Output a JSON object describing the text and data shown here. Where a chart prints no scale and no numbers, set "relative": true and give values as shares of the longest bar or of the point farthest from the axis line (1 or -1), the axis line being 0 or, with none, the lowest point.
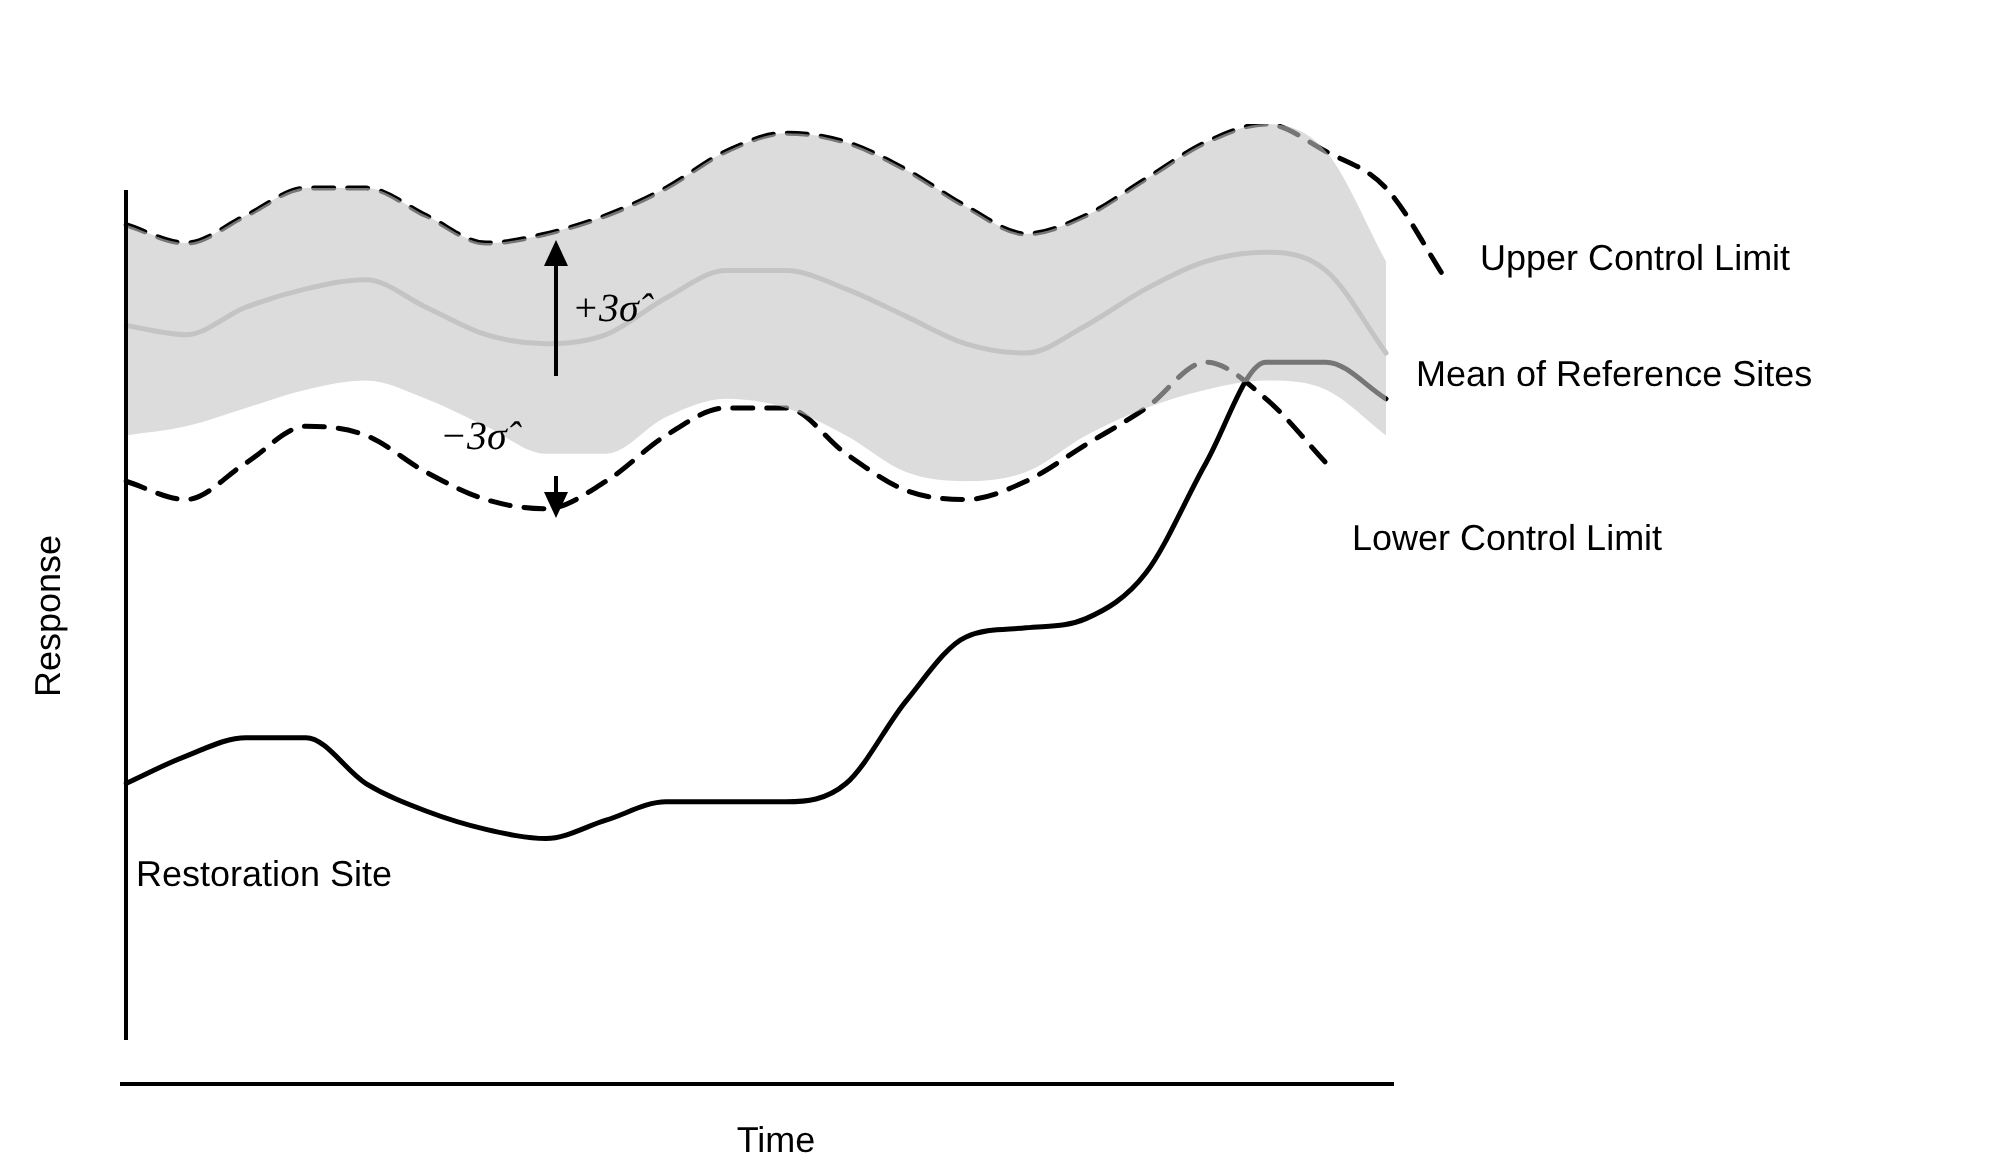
{
  "chart_data": {
    "type": "line",
    "relative": true,
    "xlabel": "Time",
    "ylabel": "Response",
    "legend": false,
    "marker": "none",
    "categories": [
      null,
      null,
      null,
      null,
      null,
      null,
      null,
      null,
      null,
      null,
      null,
      null,
      null,
      null,
      null,
      null,
      null,
      null,
      null,
      null,
      null,
      null,
      null
    ],
    "series": [
      {
        "name": "Mean of Reference Sites",
        "color": "#c4c4c4",
        "values": [
          0.78,
          0.77,
          0.8,
          0.82,
          0.83,
          0.8,
          0.77,
          0.76,
          0.77,
          0.81,
          0.84,
          0.84,
          0.82,
          0.79,
          0.76,
          0.75,
          0.78,
          0.82,
          0.85,
          0.86,
          0.84,
          0.75,
          null
        ],
        "lower": [
          0.66,
          0.67,
          0.69,
          0.71,
          0.72,
          0.7,
          0.67,
          0.64,
          0.64,
          0.68,
          0.7,
          0.69,
          0.66,
          0.62,
          0.61,
          0.62,
          0.66,
          0.69,
          0.71,
          0.72,
          0.71,
          0.66,
          null
        ],
        "upper": [
          0.89,
          0.87,
          0.9,
          0.93,
          0.93,
          0.9,
          0.87,
          0.88,
          0.9,
          0.93,
          0.97,
          0.99,
          0.98,
          0.95,
          0.91,
          0.88,
          0.9,
          0.94,
          0.98,
          1,
          0.97,
          0.85,
          null
        ]
      },
      {
        "name": "Upper Control Limit",
        "color": "#000000",
        "line_style": "dashed",
        "values": [
          0.89,
          0.87,
          0.9,
          0.93,
          0.93,
          0.9,
          0.87,
          0.88,
          0.9,
          0.93,
          0.97,
          0.99,
          0.98,
          0.95,
          0.91,
          0.88,
          0.9,
          0.94,
          0.98,
          1,
          0.97,
          0.93,
          0.83
        ]
      },
      {
        "name": "Lower Control Limit",
        "color": "#000000",
        "line_style": "dashed",
        "values": [
          0.61,
          0.59,
          0.63,
          0.67,
          0.66,
          0.62,
          0.59,
          0.58,
          0.61,
          0.66,
          0.69,
          0.69,
          0.64,
          0.6,
          0.59,
          0.61,
          0.65,
          0.69,
          0.74,
          0.7,
          0.63,
          null,
          null
        ]
      },
      {
        "name": "Restoration Site",
        "color": "#000000",
        "line_style": "solid",
        "values": [
          0.28,
          0.31,
          0.33,
          0.33,
          0.28,
          0.25,
          0.23,
          0.22,
          0.24,
          0.26,
          0.26,
          0.26,
          0.28,
          0.37,
          0.44,
          0.45,
          0.46,
          0.51,
          0.63,
          0.74,
          0.74,
          0.7,
          null
        ]
      }
    ],
    "annotations": [
      "+3σ̂",
      "−3σ̂"
    ]
  }
}
